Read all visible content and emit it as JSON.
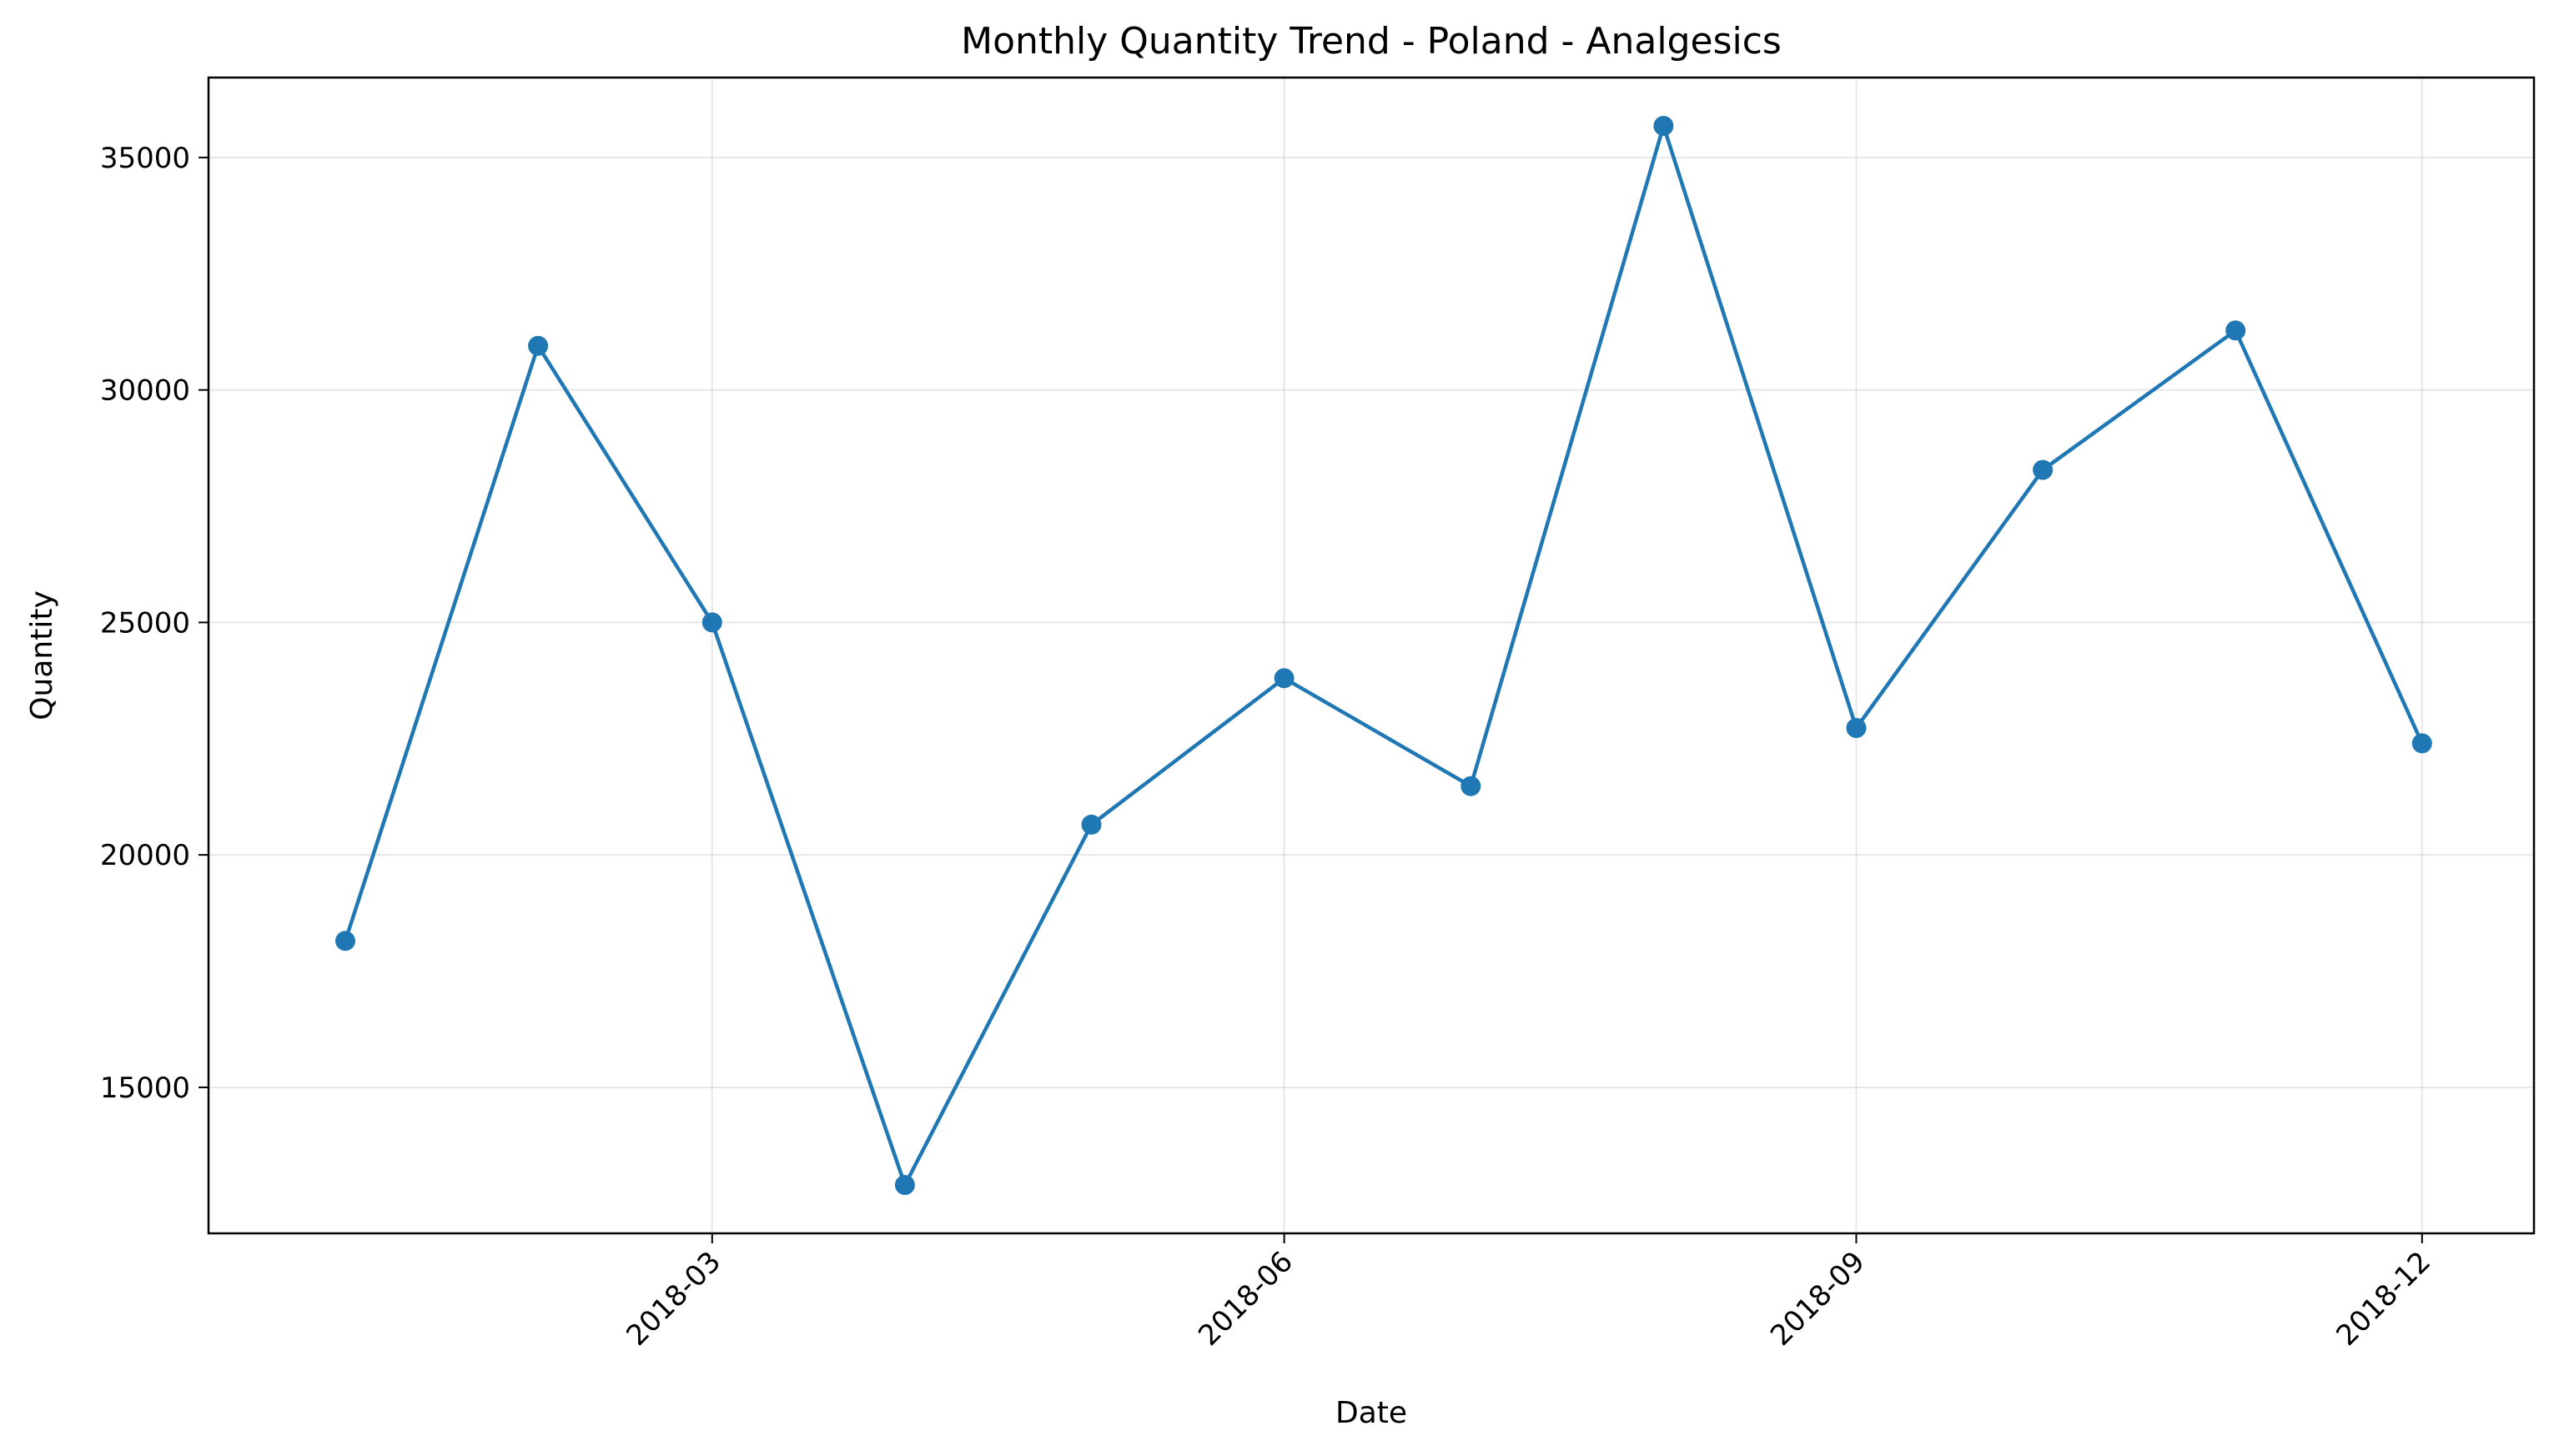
{
  "chart_data": {
    "type": "line",
    "title": "Monthly Quantity Trend - Poland - Analgesics",
    "xlabel": "Date",
    "ylabel": "Quantity",
    "x": [
      "2018-01-01",
      "2018-02-01",
      "2018-03-01",
      "2018-04-01",
      "2018-05-01",
      "2018-06-01",
      "2018-07-01",
      "2018-08-01",
      "2018-09-01",
      "2018-10-01",
      "2018-11-01",
      "2018-12-01"
    ],
    "series": [
      {
        "values": [
          18150,
          30950,
          25000,
          12900,
          20650,
          23800,
          21480,
          35680,
          22730,
          28280,
          31280,
          22400
        ],
        "color": "#1f77b4"
      }
    ],
    "x_ticks": [
      "2018-03",
      "2018-06",
      "2018-09",
      "2018-12"
    ],
    "y_ticks": [
      15000,
      20000,
      25000,
      30000,
      35000
    ],
    "xlim": [
      "2017-12-10",
      "2018-12-19"
    ],
    "ylim": [
      11860,
      36720
    ],
    "grid": true,
    "marker": "circle"
  }
}
